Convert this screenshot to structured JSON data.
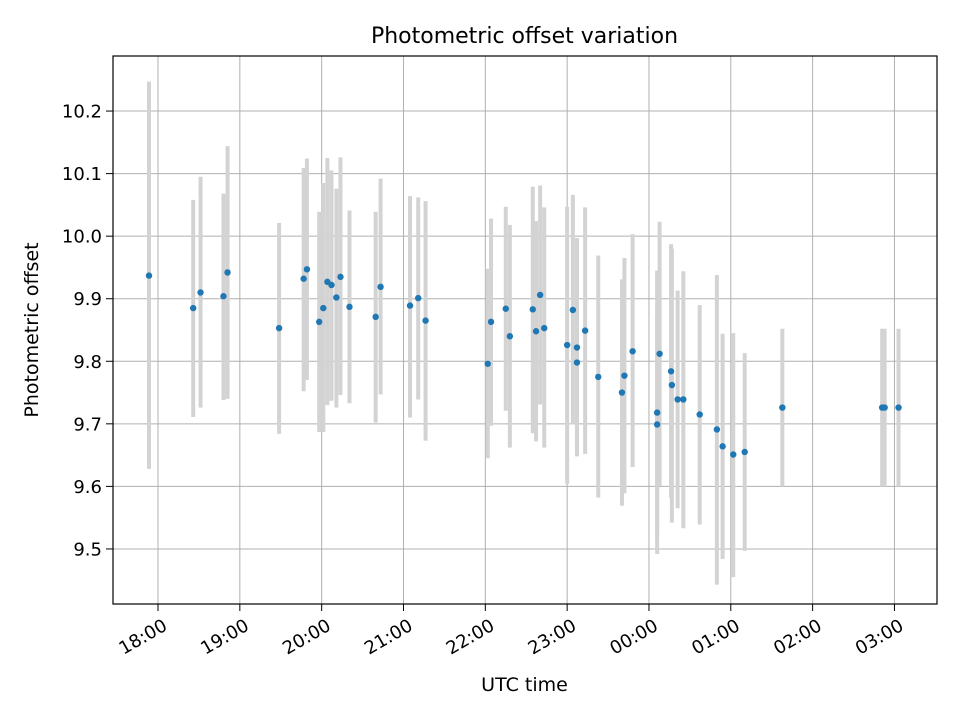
{
  "chart_data": {
    "type": "scatter",
    "title": "Photometric offset variation",
    "xlabel": "UTC time",
    "ylabel": "Photometric offset",
    "x_unit": "hours from 00:00 UTC of second day (negative = previous evening)",
    "xlim": [
      -6.55,
      3.52
    ],
    "ylim": [
      9.412,
      10.288
    ],
    "x_ticks": [
      -6,
      -5,
      -4,
      -3,
      -2,
      -1,
      0,
      1,
      2,
      3
    ],
    "x_tick_labels": [
      "18:00",
      "19:00",
      "20:00",
      "21:00",
      "22:00",
      "23:00",
      "00:00",
      "01:00",
      "02:00",
      "03:00"
    ],
    "y_ticks": [
      9.5,
      9.6,
      9.7,
      9.8,
      9.9,
      10.0,
      10.1,
      10.2
    ],
    "y_tick_labels": [
      "9.5",
      "9.6",
      "9.7",
      "9.8",
      "9.9",
      "10.0",
      "10.1",
      "10.2"
    ],
    "grid": true,
    "colors": {
      "marker": "#1f77b4",
      "errorbar": "#d3d3d3",
      "grid": "#b0b0b0"
    },
    "points": [
      {
        "x": -6.11,
        "y": 9.937,
        "lo": 9.628,
        "hi": 10.247
      },
      {
        "x": -5.57,
        "y": 9.885,
        "lo": 9.711,
        "hi": 10.058
      },
      {
        "x": -5.48,
        "y": 9.91,
        "lo": 9.726,
        "hi": 10.095
      },
      {
        "x": -5.2,
        "y": 9.904,
        "lo": 9.738,
        "hi": 10.068
      },
      {
        "x": -5.15,
        "y": 9.942,
        "lo": 9.74,
        "hi": 10.144
      },
      {
        "x": -4.52,
        "y": 9.853,
        "lo": 9.684,
        "hi": 10.021
      },
      {
        "x": -4.22,
        "y": 9.932,
        "lo": 9.752,
        "hi": 10.109
      },
      {
        "x": -4.18,
        "y": 9.947,
        "lo": 9.77,
        "hi": 10.124
      },
      {
        "x": -4.03,
        "y": 9.863,
        "lo": 9.687,
        "hi": 10.039
      },
      {
        "x": -3.98,
        "y": 9.885,
        "lo": 9.687,
        "hi": 10.085
      },
      {
        "x": -3.93,
        "y": 9.927,
        "lo": 9.73,
        "hi": 10.125
      },
      {
        "x": -3.88,
        "y": 9.922,
        "lo": 9.737,
        "hi": 10.105
      },
      {
        "x": -3.82,
        "y": 9.902,
        "lo": 9.726,
        "hi": 10.076
      },
      {
        "x": -3.77,
        "y": 9.935,
        "lo": 9.746,
        "hi": 10.126
      },
      {
        "x": -3.66,
        "y": 9.887,
        "lo": 9.733,
        "hi": 10.041
      },
      {
        "x": -3.34,
        "y": 9.871,
        "lo": 9.702,
        "hi": 10.039
      },
      {
        "x": -3.28,
        "y": 9.919,
        "lo": 9.747,
        "hi": 10.092
      },
      {
        "x": -2.92,
        "y": 9.889,
        "lo": 9.71,
        "hi": 10.064
      },
      {
        "x": -2.82,
        "y": 9.901,
        "lo": 9.739,
        "hi": 10.062
      },
      {
        "x": -2.73,
        "y": 9.865,
        "lo": 9.673,
        "hi": 10.056
      },
      {
        "x": -1.97,
        "y": 9.796,
        "lo": 9.645,
        "hi": 9.948
      },
      {
        "x": -1.93,
        "y": 9.863,
        "lo": 9.697,
        "hi": 10.028
      },
      {
        "x": -1.75,
        "y": 9.884,
        "lo": 9.721,
        "hi": 10.047
      },
      {
        "x": -1.7,
        "y": 9.84,
        "lo": 9.662,
        "hi": 10.018
      },
      {
        "x": -1.42,
        "y": 9.883,
        "lo": 9.685,
        "hi": 10.079
      },
      {
        "x": -1.38,
        "y": 9.848,
        "lo": 9.672,
        "hi": 10.024
      },
      {
        "x": -1.33,
        "y": 9.906,
        "lo": 9.731,
        "hi": 10.081
      },
      {
        "x": -1.28,
        "y": 9.853,
        "lo": 9.662,
        "hi": 10.046
      },
      {
        "x": -1.0,
        "y": 9.826,
        "lo": 9.604,
        "hi": 10.047
      },
      {
        "x": -0.93,
        "y": 9.882,
        "lo": 9.699,
        "hi": 10.066
      },
      {
        "x": -0.88,
        "y": 9.822,
        "lo": 9.648,
        "hi": 9.997
      },
      {
        "x": -0.88,
        "y": 9.798,
        "lo": 9.65,
        "hi": 9.994
      },
      {
        "x": -0.78,
        "y": 9.849,
        "lo": 9.652,
        "hi": 10.046
      },
      {
        "x": -0.62,
        "y": 9.775,
        "lo": 9.582,
        "hi": 9.969
      },
      {
        "x": -0.33,
        "y": 9.75,
        "lo": 9.569,
        "hi": 9.931
      },
      {
        "x": -0.3,
        "y": 9.777,
        "lo": 9.589,
        "hi": 9.965
      },
      {
        "x": -0.2,
        "y": 9.816,
        "lo": 9.631,
        "hi": 10.003
      },
      {
        "x": 0.1,
        "y": 9.718,
        "lo": 9.492,
        "hi": 9.945
      },
      {
        "x": 0.1,
        "y": 9.699,
        "lo": 9.525,
        "hi": 9.873
      },
      {
        "x": 0.13,
        "y": 9.812,
        "lo": 9.601,
        "hi": 10.023
      },
      {
        "x": 0.27,
        "y": 9.784,
        "lo": 9.582,
        "hi": 9.987
      },
      {
        "x": 0.28,
        "y": 9.762,
        "lo": 9.542,
        "hi": 9.98
      },
      {
        "x": 0.35,
        "y": 9.739,
        "lo": 9.565,
        "hi": 9.913
      },
      {
        "x": 0.42,
        "y": 9.739,
        "lo": 9.533,
        "hi": 9.944
      },
      {
        "x": 0.62,
        "y": 9.715,
        "lo": 9.539,
        "hi": 9.89
      },
      {
        "x": 0.83,
        "y": 9.691,
        "lo": 9.443,
        "hi": 9.938
      },
      {
        "x": 0.9,
        "y": 9.664,
        "lo": 9.484,
        "hi": 9.844
      },
      {
        "x": 1.03,
        "y": 9.651,
        "lo": 9.455,
        "hi": 9.845
      },
      {
        "x": 1.17,
        "y": 9.655,
        "lo": 9.497,
        "hi": 9.813
      },
      {
        "x": 1.63,
        "y": 9.726,
        "lo": 9.6,
        "hi": 9.852
      },
      {
        "x": 2.85,
        "y": 9.726,
        "lo": 9.6,
        "hi": 9.852
      },
      {
        "x": 2.88,
        "y": 9.726,
        "lo": 9.6,
        "hi": 9.852
      },
      {
        "x": 3.05,
        "y": 9.726,
        "lo": 9.6,
        "hi": 9.852
      }
    ]
  }
}
